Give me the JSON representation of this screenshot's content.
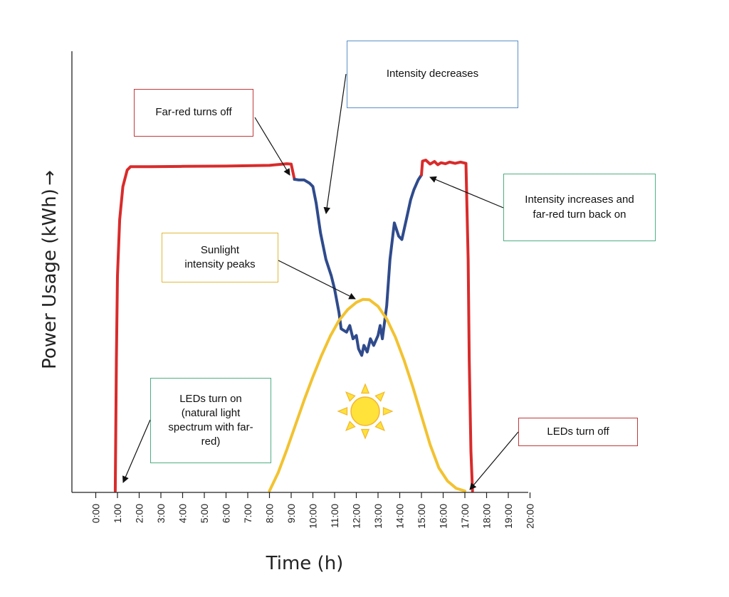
{
  "chart_data": {
    "type": "line",
    "xlabel": "Time (h)",
    "ylabel": "Power Usage (kWh)",
    "ylabel_arrow": "→",
    "x_ticks": [
      "0:00",
      "1:00",
      "2:00",
      "3:00",
      "4:00",
      "5:00",
      "6:00",
      "7:00",
      "8:00",
      "9:00",
      "10:00",
      "11:00",
      "12:00",
      "13:00",
      "14:00",
      "15:00",
      "16:00",
      "17:00",
      "18:00",
      "19:00",
      "20:00"
    ],
    "xlim": [
      0,
      20
    ],
    "ylim": [
      0,
      100
    ],
    "grid": false,
    "legend": "none",
    "series": [
      {
        "color": "#d92b2b",
        "x": [
          0.9,
          0.95,
          1.0,
          1.1,
          1.25,
          1.45,
          1.6,
          2.5,
          4.0,
          6.0,
          8.0,
          8.8,
          9.0,
          9.15
        ],
        "y": [
          0,
          40,
          65,
          82,
          92,
          97,
          98,
          98,
          98.1,
          98.2,
          98.4,
          98.9,
          98.8,
          94.2
        ]
      },
      {
        "color": "#2f4b8c",
        "x": [
          9.15,
          9.35,
          9.6,
          9.85,
          10.0,
          10.15,
          10.35,
          10.6,
          10.85,
          11.0,
          11.2,
          11.3,
          11.55,
          11.7,
          11.85,
          12.0,
          12.1,
          12.25,
          12.35,
          12.5,
          12.65,
          12.8,
          13.0,
          13.1,
          13.2,
          13.4,
          13.55,
          13.75,
          13.95,
          14.1,
          14.3,
          14.5,
          14.65,
          14.85,
          15.0
        ],
        "y": [
          94.2,
          94.0,
          94.0,
          93.0,
          92.0,
          87.0,
          78.0,
          70.0,
          65.0,
          61.0,
          54.0,
          49.0,
          48.0,
          50.0,
          46.0,
          47.0,
          43.0,
          41.0,
          44.0,
          42.0,
          46.0,
          44.0,
          47.0,
          50.0,
          46.0,
          56.0,
          70.0,
          81.0,
          77.0,
          76.0,
          82.0,
          88.0,
          91.0,
          94.0,
          95.5
        ]
      },
      {
        "color": "#d92b2b",
        "x": [
          15.0,
          15.05,
          15.2,
          15.4,
          15.6,
          15.75,
          15.9,
          16.1,
          16.3,
          16.55,
          16.8,
          17.05,
          17.15,
          17.2,
          17.28,
          17.35
        ],
        "y": [
          95.5,
          99.7,
          100.0,
          98.8,
          99.6,
          98.6,
          99.2,
          98.9,
          99.4,
          99.0,
          99.4,
          99.0,
          70.0,
          40.0,
          12.0,
          0.0
        ]
      },
      {
        "color": "#f2c230",
        "x": [
          8.0,
          8.4,
          8.8,
          9.2,
          9.6,
          10.0,
          10.4,
          10.8,
          11.2,
          11.6,
          12.0,
          12.3,
          12.6,
          13.0,
          13.4,
          13.8,
          14.2,
          14.6,
          15.0,
          15.4,
          15.8,
          16.2,
          16.6,
          17.0
        ],
        "y": [
          0,
          5.5,
          12.5,
          20.0,
          27.5,
          34.5,
          41.0,
          46.8,
          51.5,
          54.8,
          57.0,
          57.9,
          57.8,
          55.8,
          52.0,
          46.5,
          39.5,
          31.5,
          22.7,
          14.0,
          7.0,
          3.0,
          0.8,
          0
        ]
      }
    ],
    "annotations": [
      {
        "id": "far-red-off",
        "text": "Far-red turns off",
        "border": "#c0393b"
      },
      {
        "id": "intensity-decreases",
        "text": "Intensity decreases",
        "border": "#5b8fc7"
      },
      {
        "id": "intensity-increases",
        "text": "Intensity increases and far-red turn back on",
        "border": "#4fae81"
      },
      {
        "id": "sunlight-peaks",
        "text": "Sunlight intensity peaks",
        "border": "#e0b93a"
      },
      {
        "id": "leds-on",
        "text": "LEDs turn on (natural light spectrum with far-red)",
        "border": "#4fae81"
      },
      {
        "id": "leds-off",
        "text": "LEDs turn off",
        "border": "#c0393b"
      }
    ]
  }
}
